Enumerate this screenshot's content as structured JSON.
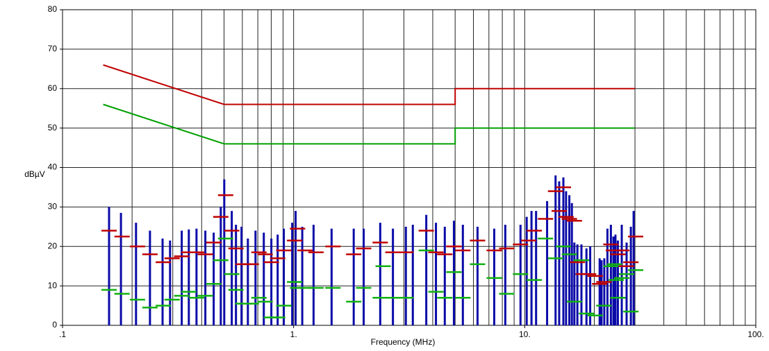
{
  "chart_data": {
    "type": "line",
    "xlabel": "Frequency (MHz)",
    "ylabel": "dBµV",
    "xscale": "log",
    "xlim": [
      0.1,
      100
    ],
    "ylim": [
      0,
      80
    ],
    "xticks": [
      {
        "value": 0.1,
        "label": ".1"
      },
      {
        "value": 1,
        "label": "1."
      },
      {
        "value": 10,
        "label": "10."
      },
      {
        "value": 100,
        "label": "100."
      }
    ],
    "xminorticks": [
      0.2,
      0.3,
      0.4,
      0.5,
      0.6,
      0.7,
      0.8,
      0.9,
      2,
      3,
      4,
      5,
      6,
      7,
      8,
      9,
      20,
      30,
      40,
      50,
      60,
      70,
      80,
      90
    ],
    "yticks": [
      0,
      10,
      20,
      30,
      40,
      50,
      60,
      70,
      80
    ],
    "grid": true,
    "series": [
      {
        "mark": "line",
        "color": "#c00000",
        "x": [
          0.15,
          0.5,
          5,
          5,
          30
        ],
        "values": [
          66,
          56,
          56,
          60,
          60
        ]
      },
      {
        "mark": "line",
        "color": "#00a000",
        "x": [
          0.15,
          0.5,
          5,
          5,
          30
        ],
        "values": [
          56,
          46,
          46,
          50,
          50
        ]
      },
      {
        "mark": "stem",
        "color": "#0a0aa8",
        "x": [
          0.159,
          0.179,
          0.208,
          0.239,
          0.271,
          0.292,
          0.328,
          0.352,
          0.38,
          0.415,
          0.451,
          0.484,
          0.501,
          0.54,
          0.563,
          0.595,
          0.634,
          0.684,
          0.743,
          0.801,
          0.853,
          0.907,
          0.986,
          1.02,
          1.09,
          1.22,
          1.46,
          1.82,
          2.01,
          2.37,
          2.69,
          3.06,
          3.28,
          3.75,
          4.13,
          4.51,
          4.94,
          5.4,
          6.25,
          7.38,
          8.24,
          9.59,
          10.2,
          10.7,
          11.2,
          12.5,
          13.6,
          14.1,
          14.7,
          15.1,
          15.6,
          16.0,
          16.4,
          16.9,
          17.6,
          18.5,
          19.2,
          21.1,
          21.5,
          22.1,
          22.8,
          23.6,
          24.2,
          24.7,
          25.3,
          26.3,
          27.6,
          28.8,
          29.6
        ],
        "values": [
          30,
          28.5,
          26,
          24,
          22,
          21.5,
          24,
          24.3,
          24.5,
          24,
          23.5,
          30,
          37,
          29,
          25.5,
          25,
          22,
          24,
          23.5,
          22,
          23,
          24.5,
          26,
          29,
          25,
          25.5,
          24.5,
          24.5,
          24.5,
          26,
          24.5,
          25,
          25.5,
          28,
          26,
          25,
          26.5,
          25.5,
          25,
          24.5,
          25.5,
          25.5,
          27.5,
          29,
          29,
          31.5,
          38,
          36.5,
          37.5,
          34,
          33,
          31,
          21,
          20.5,
          20.5,
          19.5,
          20,
          17,
          16.5,
          17,
          24.5,
          25.5,
          22.5,
          23,
          21.5,
          25.5,
          21,
          25,
          29
        ]
      },
      {
        "mark": "dash",
        "color": "#c00000",
        "x": [
          0.159,
          0.181,
          0.211,
          0.239,
          0.273,
          0.298,
          0.328,
          0.352,
          0.38,
          0.415,
          0.451,
          0.484,
          0.508,
          0.54,
          0.563,
          0.604,
          0.656,
          0.708,
          0.753,
          0.801,
          0.853,
          0.907,
          1.01,
          1.04,
          1.12,
          1.25,
          1.48,
          1.82,
          2.01,
          2.37,
          2.69,
          3.06,
          3.75,
          4.13,
          4.51,
          4.94,
          5.4,
          6.25,
          7.38,
          8.36,
          9.59,
          10.4,
          11.0,
          12.3,
          13.6,
          14.1,
          14.7,
          15.1,
          15.6,
          16.4,
          16.9,
          17.9,
          18.9,
          20.2,
          21.1,
          22.0,
          23.6,
          24.2,
          25.3,
          26.3,
          27.6,
          28.8,
          30.2
        ],
        "values": [
          24,
          22.5,
          20,
          18,
          16,
          17,
          17.5,
          18.5,
          18.5,
          18,
          21,
          27.5,
          33,
          24,
          19.5,
          15.5,
          15.5,
          18.5,
          18,
          16,
          17,
          19,
          21.5,
          24.5,
          19,
          18.5,
          20,
          18,
          19.5,
          21,
          18.5,
          18.5,
          24,
          18.5,
          18,
          20,
          19,
          21.5,
          19,
          19.5,
          20.5,
          21.5,
          24,
          27,
          34,
          29,
          35,
          27.5,
          27,
          26.5,
          16,
          13,
          13,
          12.5,
          10.5,
          11,
          20.5,
          19,
          18,
          19,
          15,
          16,
          22.5
        ]
      },
      {
        "mark": "dash",
        "color": "#10b010",
        "x": [
          0.159,
          0.181,
          0.211,
          0.239,
          0.273,
          0.298,
          0.328,
          0.352,
          0.38,
          0.415,
          0.451,
          0.484,
          0.508,
          0.54,
          0.563,
          0.604,
          0.656,
          0.708,
          0.753,
          0.801,
          0.853,
          0.907,
          1.01,
          1.04,
          1.12,
          1.25,
          1.48,
          1.82,
          2.01,
          2.37,
          2.44,
          2.69,
          3.06,
          3.75,
          4.13,
          4.51,
          4.94,
          5.4,
          6.25,
          7.38,
          8.36,
          9.59,
          11.0,
          12.3,
          13.6,
          14.7,
          15.6,
          16.4,
          17.6,
          18.5,
          20.2,
          22.0,
          23.6,
          24.5,
          24.9,
          25.3,
          26.3,
          27.6,
          28.8,
          30.2
        ],
        "values": [
          9,
          8,
          6.5,
          4.5,
          5,
          6.5,
          7.5,
          8.5,
          7,
          7.5,
          10.5,
          16.5,
          22,
          13,
          9,
          5.5,
          5.5,
          7,
          6,
          2,
          2,
          5,
          11,
          9.5,
          9.5,
          9.5,
          9.5,
          6,
          9.5,
          7,
          15,
          7,
          7,
          19,
          8.5,
          7,
          13.5,
          7,
          15.5,
          12,
          8,
          13,
          11.5,
          22,
          17,
          20,
          18,
          6,
          16.5,
          3,
          2.5,
          5,
          15,
          15.5,
          11.5,
          7,
          12,
          13,
          3.5,
          14
        ]
      }
    ]
  }
}
